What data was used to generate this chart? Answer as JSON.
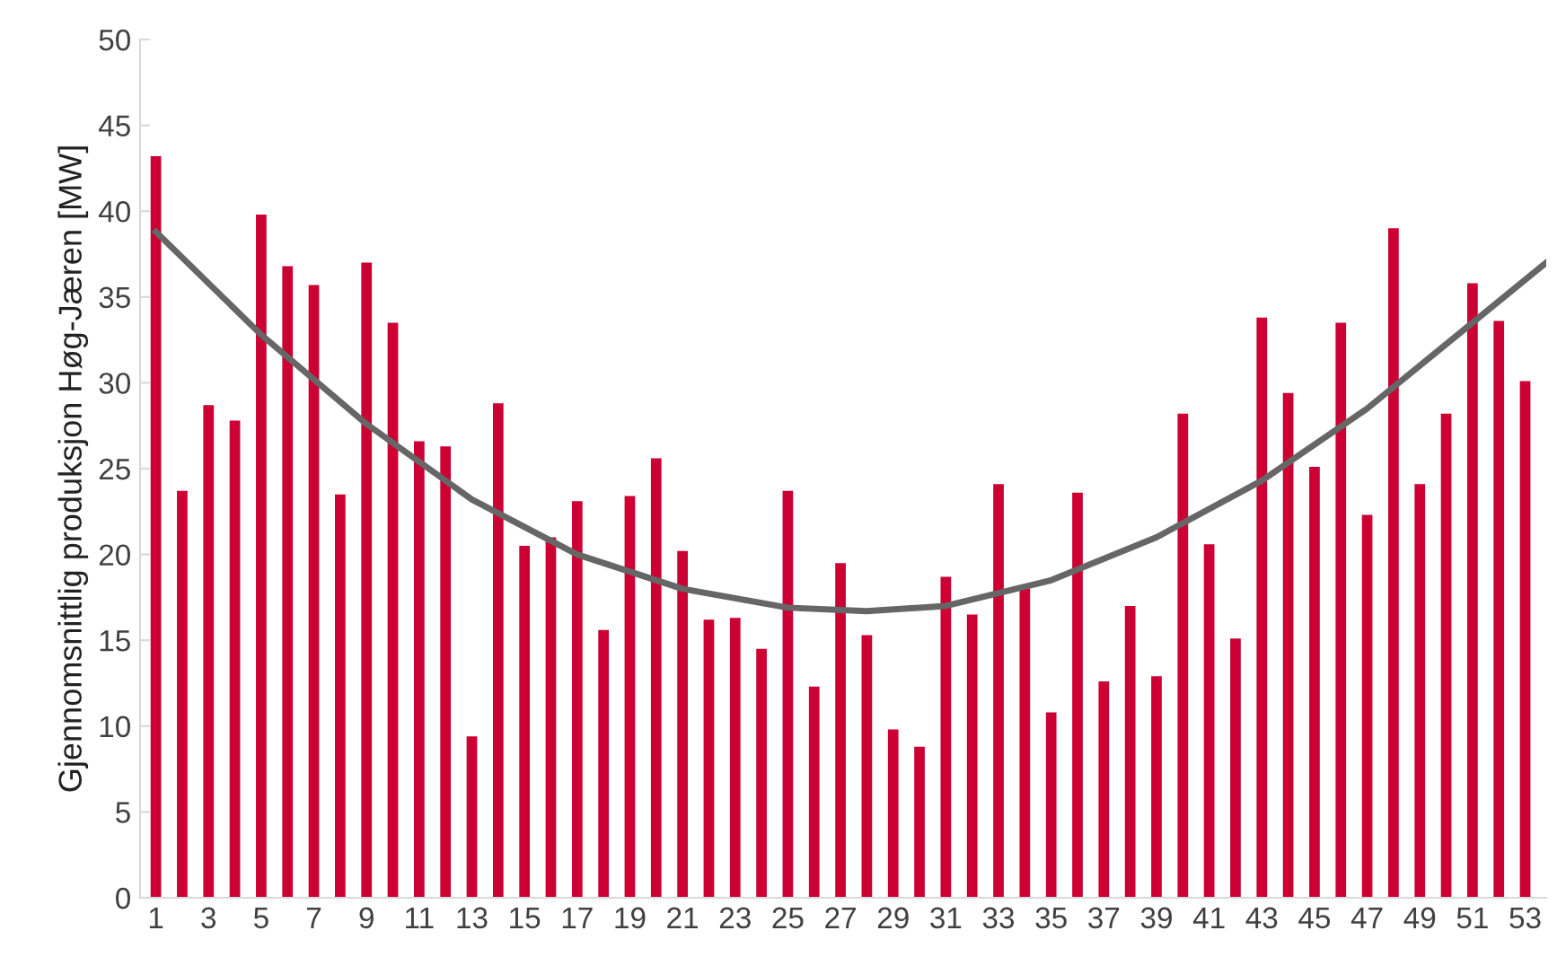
{
  "chart_data": {
    "type": "bar",
    "ylabel": "Gjennomsnittlig produksjon Høg-Jæren [MW]",
    "x": [
      1,
      2,
      3,
      4,
      5,
      6,
      7,
      8,
      9,
      10,
      11,
      12,
      13,
      14,
      15,
      16,
      17,
      18,
      19,
      20,
      21,
      22,
      23,
      24,
      25,
      26,
      27,
      28,
      29,
      30,
      31,
      32,
      33,
      34,
      35,
      36,
      37,
      38,
      39,
      40,
      41,
      42,
      43,
      44,
      45,
      46,
      47,
      48,
      49,
      50,
      51,
      52,
      53
    ],
    "series": [
      {
        "color": "#cc0033",
        "values": [
          43.2,
          23.7,
          28.7,
          27.8,
          39.8,
          36.8,
          35.7,
          23.5,
          37.0,
          33.5,
          26.6,
          26.3,
          9.4,
          28.8,
          20.5,
          21.0,
          23.1,
          15.6,
          23.4,
          25.6,
          20.2,
          16.2,
          16.3,
          14.5,
          23.7,
          12.3,
          19.5,
          15.3,
          9.8,
          8.8,
          18.7,
          16.5,
          24.1,
          18.0,
          10.8,
          23.6,
          12.6,
          17.0,
          12.9,
          28.2,
          20.6,
          15.1,
          33.8,
          29.4,
          25.1,
          33.5,
          22.3,
          39.0,
          24.1,
          28.2,
          35.8,
          33.6,
          30.1
        ]
      },
      {
        "type": "line",
        "color": "#666666",
        "x": [
          1,
          5,
          9,
          13,
          17,
          21,
          25,
          28,
          31,
          35,
          39,
          43,
          47,
          51,
          53.8
        ],
        "values": [
          38.8,
          32.8,
          27.6,
          23.2,
          20.0,
          18.0,
          16.9,
          16.7,
          17.0,
          18.5,
          21.0,
          24.3,
          28.5,
          33.5,
          37.0
        ]
      }
    ],
    "xlim": [
      0.4,
      53.8
    ],
    "xticks": [
      1,
      3,
      5,
      7,
      9,
      11,
      13,
      15,
      17,
      19,
      21,
      23,
      25,
      27,
      29,
      31,
      33,
      35,
      37,
      39,
      41,
      43,
      45,
      47,
      49,
      51,
      53
    ],
    "ylim": [
      0,
      50
    ],
    "yticks": [
      0,
      5,
      10,
      15,
      20,
      25,
      30,
      35,
      40,
      45,
      50
    ],
    "grid": false,
    "legend": false
  }
}
